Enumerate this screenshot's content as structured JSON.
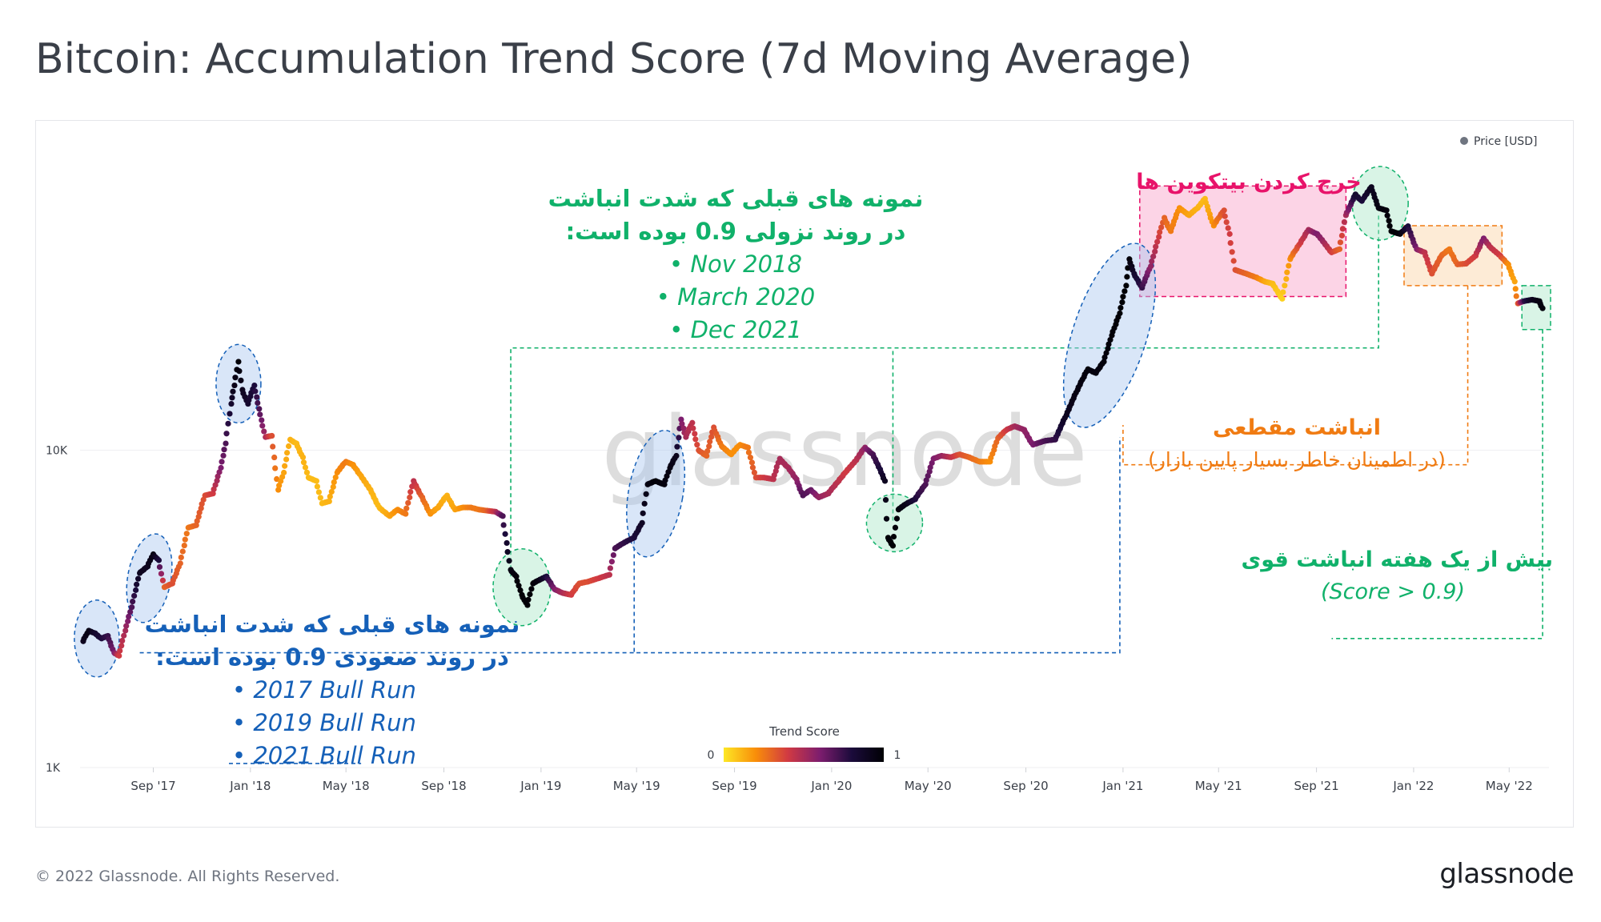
{
  "header": {
    "title": "Bitcoin: Accumulation Trend Score (7d Moving Average)"
  },
  "footer": {
    "copyright": "© 2022 Glassnode. All Rights Reserved.",
    "brand": "glassnode"
  },
  "watermark": "glassnode",
  "legend": {
    "series_label": "Price [USD]",
    "marker_color": "#6f7580"
  },
  "colorbar": {
    "title": "Trend Score",
    "min_label": "0",
    "max_label": "1",
    "colors": [
      "#fde725",
      "#f98e09",
      "#d13a42",
      "#7d1d6e",
      "#1b0b3b",
      "#000004"
    ]
  },
  "colors": {
    "green": "#10b16a",
    "blue": "#1560b8",
    "pink": "#e8136a",
    "orange": "#f07b12"
  },
  "annotations": {
    "downtrend": {
      "line1": "نمونه های قبلی که شدت انباشت",
      "line2": "در روند نزولی 0.9 بوده است:",
      "items": [
        "Nov 2018",
        "March 2020",
        "Dec 2021"
      ]
    },
    "uptrend": {
      "line1": "نمونه های قبلی که شدت انباشت",
      "line2": "در روند صعودی 0.9 بوده است:",
      "items": [
        "2017 Bull Run",
        "2019 Bull Run",
        "2021 Bull Run"
      ]
    },
    "distribution": {
      "text": "خرج کردن بیتکوین ها"
    },
    "pause": {
      "line1": "انباشت مقطعی",
      "line2": "(در اطمینان خاطر بسیار پایین بازار)"
    },
    "strong": {
      "line1": "بیش از یک هفته انباشت قوی",
      "line2": "(Score > 0.9)"
    }
  },
  "chart_data": {
    "type": "scatter",
    "title": "Bitcoin: Accumulation Trend Score (7d Moving Average)",
    "y_scale": "log",
    "ylim": [
      1000,
      100000
    ],
    "y_ticks": [
      {
        "value": 1000,
        "label": "1K"
      },
      {
        "value": 10000,
        "label": "10K"
      }
    ],
    "x_range": [
      "2017-06-01",
      "2022-06-20"
    ],
    "x_ticks": [
      {
        "date": "2017-09-01",
        "label": "Sep '17"
      },
      {
        "date": "2018-01-01",
        "label": "Jan '18"
      },
      {
        "date": "2018-05-01",
        "label": "May '18"
      },
      {
        "date": "2018-09-01",
        "label": "Sep '18"
      },
      {
        "date": "2019-01-01",
        "label": "Jan '19"
      },
      {
        "date": "2019-05-01",
        "label": "May '19"
      },
      {
        "date": "2019-09-01",
        "label": "Sep '19"
      },
      {
        "date": "2020-01-01",
        "label": "Jan '20"
      },
      {
        "date": "2020-05-01",
        "label": "May '20"
      },
      {
        "date": "2020-09-01",
        "label": "Sep '20"
      },
      {
        "date": "2021-01-01",
        "label": "Jan '21"
      },
      {
        "date": "2021-05-01",
        "label": "May '21"
      },
      {
        "date": "2021-09-01",
        "label": "Sep '21"
      },
      {
        "date": "2022-01-01",
        "label": "Jan '22"
      },
      {
        "date": "2022-05-01",
        "label": "May '22"
      }
    ],
    "series": [
      {
        "name": "Price [USD]",
        "points": [
          [
            "2017-06-05",
            2500,
            0.9
          ],
          [
            "2017-06-12",
            2700,
            0.95
          ],
          [
            "2017-06-20",
            2650,
            0.85
          ],
          [
            "2017-06-28",
            2550,
            0.8
          ],
          [
            "2017-07-06",
            2600,
            0.75
          ],
          [
            "2017-07-14",
            2300,
            0.6
          ],
          [
            "2017-07-20",
            2250,
            0.4
          ],
          [
            "2017-07-28",
            2700,
            0.5
          ],
          [
            "2017-08-05",
            3200,
            0.7
          ],
          [
            "2017-08-15",
            4100,
            0.9
          ],
          [
            "2017-08-25",
            4300,
            0.9
          ],
          [
            "2017-09-01",
            4700,
            0.95
          ],
          [
            "2017-09-08",
            4500,
            0.8
          ],
          [
            "2017-09-15",
            3700,
            0.3
          ],
          [
            "2017-09-25",
            3800,
            0.35
          ],
          [
            "2017-10-05",
            4400,
            0.3
          ],
          [
            "2017-10-15",
            5700,
            0.25
          ],
          [
            "2017-10-25",
            5800,
            0.3
          ],
          [
            "2017-11-05",
            7200,
            0.35
          ],
          [
            "2017-11-15",
            7300,
            0.4
          ],
          [
            "2017-11-25",
            8800,
            0.6
          ],
          [
            "2017-12-01",
            10500,
            0.7
          ],
          [
            "2017-12-08",
            14000,
            0.85
          ],
          [
            "2017-12-12",
            16000,
            0.92
          ],
          [
            "2017-12-17",
            19000,
            0.98
          ],
          [
            "2017-12-22",
            15500,
            0.9
          ],
          [
            "2017-12-29",
            14000,
            0.85
          ],
          [
            "2018-01-06",
            16000,
            0.8
          ],
          [
            "2018-01-12",
            13500,
            0.7
          ],
          [
            "2018-01-20",
            11000,
            0.5
          ],
          [
            "2018-01-28",
            11100,
            0.35
          ],
          [
            "2018-02-05",
            7500,
            0.2
          ],
          [
            "2018-02-12",
            8500,
            0.15
          ],
          [
            "2018-02-20",
            10800,
            0.12
          ],
          [
            "2018-02-28",
            10500,
            0.1
          ],
          [
            "2018-03-08",
            9500,
            0.12
          ],
          [
            "2018-03-15",
            8200,
            0.1
          ],
          [
            "2018-03-25",
            8000,
            0.1
          ],
          [
            "2018-04-01",
            6800,
            0.1
          ],
          [
            "2018-04-10",
            6900,
            0.12
          ],
          [
            "2018-04-20",
            8500,
            0.2
          ],
          [
            "2018-05-01",
            9200,
            0.25
          ],
          [
            "2018-05-10",
            9000,
            0.2
          ],
          [
            "2018-05-20",
            8300,
            0.15
          ],
          [
            "2018-06-01",
            7500,
            0.12
          ],
          [
            "2018-06-12",
            6600,
            0.1
          ],
          [
            "2018-06-25",
            6200,
            0.15
          ],
          [
            "2018-07-05",
            6500,
            0.2
          ],
          [
            "2018-07-15",
            6300,
            0.25
          ],
          [
            "2018-07-25",
            8000,
            0.45
          ],
          [
            "2018-08-05",
            7100,
            0.3
          ],
          [
            "2018-08-15",
            6300,
            0.2
          ],
          [
            "2018-08-25",
            6600,
            0.15
          ],
          [
            "2018-09-05",
            7200,
            0.12
          ],
          [
            "2018-09-15",
            6500,
            0.15
          ],
          [
            "2018-09-25",
            6600,
            0.2
          ],
          [
            "2018-10-05",
            6600,
            0.25
          ],
          [
            "2018-10-15",
            6500,
            0.25
          ],
          [
            "2018-10-25",
            6450,
            0.3
          ],
          [
            "2018-11-05",
            6400,
            0.45
          ],
          [
            "2018-11-14",
            6200,
            0.7
          ],
          [
            "2018-11-19",
            5100,
            0.85
          ],
          [
            "2018-11-24",
            4200,
            0.95
          ],
          [
            "2018-12-01",
            4000,
            0.98
          ],
          [
            "2018-12-08",
            3500,
            0.99
          ],
          [
            "2018-12-15",
            3250,
            0.99
          ],
          [
            "2018-12-22",
            3800,
            0.98
          ],
          [
            "2018-12-30",
            3900,
            0.95
          ],
          [
            "2019-01-08",
            4000,
            0.8
          ],
          [
            "2019-01-18",
            3650,
            0.6
          ],
          [
            "2019-01-28",
            3550,
            0.5
          ],
          [
            "2019-02-08",
            3500,
            0.4
          ],
          [
            "2019-02-18",
            3800,
            0.35
          ],
          [
            "2019-03-01",
            3850,
            0.35
          ],
          [
            "2019-03-15",
            3950,
            0.4
          ],
          [
            "2019-03-28",
            4050,
            0.45
          ],
          [
            "2019-04-04",
            4900,
            0.7
          ],
          [
            "2019-04-15",
            5100,
            0.75
          ],
          [
            "2019-04-28",
            5300,
            0.8
          ],
          [
            "2019-05-08",
            5900,
            0.88
          ],
          [
            "2019-05-15",
            7800,
            0.95
          ],
          [
            "2019-05-25",
            8000,
            0.98
          ],
          [
            "2019-06-05",
            7800,
            0.96
          ],
          [
            "2019-06-12",
            8800,
            0.95
          ],
          [
            "2019-06-20",
            9600,
            0.92
          ],
          [
            "2019-06-26",
            12500,
            0.6
          ],
          [
            "2019-07-02",
            11000,
            0.5
          ],
          [
            "2019-07-10",
            12200,
            0.45
          ],
          [
            "2019-07-18",
            10000,
            0.35
          ],
          [
            "2019-07-28",
            9600,
            0.3
          ],
          [
            "2019-08-06",
            11800,
            0.35
          ],
          [
            "2019-08-16",
            10300,
            0.25
          ],
          [
            "2019-08-28",
            9700,
            0.2
          ],
          [
            "2019-09-08",
            10400,
            0.2
          ],
          [
            "2019-09-18",
            10200,
            0.25
          ],
          [
            "2019-09-28",
            8200,
            0.35
          ],
          [
            "2019-10-08",
            8200,
            0.4
          ],
          [
            "2019-10-20",
            8100,
            0.45
          ],
          [
            "2019-10-28",
            9400,
            0.5
          ],
          [
            "2019-11-08",
            8800,
            0.5
          ],
          [
            "2019-11-18",
            8100,
            0.55
          ],
          [
            "2019-11-26",
            7200,
            0.7
          ],
          [
            "2019-12-06",
            7500,
            0.65
          ],
          [
            "2019-12-16",
            7100,
            0.55
          ],
          [
            "2019-12-28",
            7300,
            0.5
          ],
          [
            "2020-01-10",
            8000,
            0.45
          ],
          [
            "2020-01-20",
            8600,
            0.4
          ],
          [
            "2020-02-01",
            9300,
            0.45
          ],
          [
            "2020-02-12",
            10200,
            0.55
          ],
          [
            "2020-02-22",
            9700,
            0.7
          ],
          [
            "2020-03-02",
            8700,
            0.8
          ],
          [
            "2020-03-08",
            8000,
            0.9
          ],
          [
            "2020-03-12",
            5300,
            0.98
          ],
          [
            "2020-03-18",
            5000,
            0.99
          ],
          [
            "2020-03-25",
            6500,
            0.97
          ],
          [
            "2020-04-05",
            6800,
            0.92
          ],
          [
            "2020-04-15",
            7000,
            0.8
          ],
          [
            "2020-04-28",
            7800,
            0.7
          ],
          [
            "2020-05-08",
            9400,
            0.6
          ],
          [
            "2020-05-18",
            9600,
            0.55
          ],
          [
            "2020-05-30",
            9500,
            0.45
          ],
          [
            "2020-06-10",
            9700,
            0.35
          ],
          [
            "2020-06-22",
            9500,
            0.3
          ],
          [
            "2020-07-05",
            9200,
            0.25
          ],
          [
            "2020-07-18",
            9200,
            0.2
          ],
          [
            "2020-07-28",
            10900,
            0.3
          ],
          [
            "2020-08-08",
            11600,
            0.4
          ],
          [
            "2020-08-18",
            11900,
            0.5
          ],
          [
            "2020-08-30",
            11600,
            0.55
          ],
          [
            "2020-09-10",
            10400,
            0.6
          ],
          [
            "2020-09-25",
            10700,
            0.7
          ],
          [
            "2020-10-08",
            10800,
            0.75
          ],
          [
            "2020-10-22",
            12900,
            0.9
          ],
          [
            "2020-11-05",
            15500,
            0.95
          ],
          [
            "2020-11-18",
            18000,
            0.97
          ],
          [
            "2020-11-28",
            17500,
            0.96
          ],
          [
            "2020-12-08",
            19000,
            0.97
          ],
          [
            "2020-12-18",
            23000,
            0.98
          ],
          [
            "2020-12-28",
            27000,
            0.99
          ],
          [
            "2021-01-05",
            33000,
            0.99
          ],
          [
            "2021-01-09",
            40000,
            0.98
          ],
          [
            "2021-01-15",
            36000,
            0.85
          ],
          [
            "2021-01-25",
            32500,
            0.75
          ],
          [
            "2021-02-05",
            38000,
            0.55
          ],
          [
            "2021-02-15",
            47000,
            0.4
          ],
          [
            "2021-02-22",
            54000,
            0.3
          ],
          [
            "2021-03-02",
            49000,
            0.25
          ],
          [
            "2021-03-13",
            58000,
            0.2
          ],
          [
            "2021-03-25",
            55000,
            0.15
          ],
          [
            "2021-04-05",
            58000,
            0.12
          ],
          [
            "2021-04-14",
            62000,
            0.1
          ],
          [
            "2021-04-25",
            51000,
            0.2
          ],
          [
            "2021-05-08",
            57000,
            0.35
          ],
          [
            "2021-05-15",
            48000,
            0.4
          ],
          [
            "2021-05-22",
            37000,
            0.35
          ],
          [
            "2021-06-05",
            36000,
            0.3
          ],
          [
            "2021-06-18",
            35000,
            0.25
          ],
          [
            "2021-06-28",
            34000,
            0.15
          ],
          [
            "2021-07-08",
            33500,
            0.1
          ],
          [
            "2021-07-20",
            30000,
            0.05
          ],
          [
            "2021-07-30",
            40000,
            0.2
          ],
          [
            "2021-08-12",
            45000,
            0.4
          ],
          [
            "2021-08-22",
            49500,
            0.5
          ],
          [
            "2021-09-02",
            48000,
            0.6
          ],
          [
            "2021-09-08",
            46000,
            0.55
          ],
          [
            "2021-09-20",
            42000,
            0.4
          ],
          [
            "2021-09-30",
            43000,
            0.3
          ],
          [
            "2021-10-08",
            55000,
            0.5
          ],
          [
            "2021-10-20",
            64000,
            0.85
          ],
          [
            "2021-10-28",
            61000,
            0.8
          ],
          [
            "2021-11-09",
            67500,
            0.9
          ],
          [
            "2021-11-18",
            58000,
            0.95
          ],
          [
            "2021-11-28",
            57000,
            0.97
          ],
          [
            "2021-12-04",
            49000,
            0.99
          ],
          [
            "2021-12-15",
            48000,
            0.98
          ],
          [
            "2021-12-25",
            50800,
            0.8
          ],
          [
            "2022-01-05",
            43000,
            0.6
          ],
          [
            "2022-01-15",
            42000,
            0.45
          ],
          [
            "2022-01-24",
            36000,
            0.35
          ],
          [
            "2022-02-05",
            41000,
            0.3
          ],
          [
            "2022-02-15",
            43000,
            0.25
          ],
          [
            "2022-02-25",
            38500,
            0.3
          ],
          [
            "2022-03-08",
            38700,
            0.35
          ],
          [
            "2022-03-20",
            41000,
            0.4
          ],
          [
            "2022-03-30",
            46500,
            0.6
          ],
          [
            "2022-04-08",
            43500,
            0.45
          ],
          [
            "2022-04-20",
            41000,
            0.4
          ],
          [
            "2022-04-30",
            38500,
            0.2
          ],
          [
            "2022-05-08",
            34000,
            0.15
          ],
          [
            "2022-05-12",
            29000,
            0.3
          ],
          [
            "2022-05-20",
            29500,
            0.75
          ],
          [
            "2022-05-30",
            29800,
            0.9
          ],
          [
            "2022-06-08",
            29500,
            0.95
          ],
          [
            "2022-06-12",
            28000,
            0.97
          ]
        ]
      }
    ]
  }
}
